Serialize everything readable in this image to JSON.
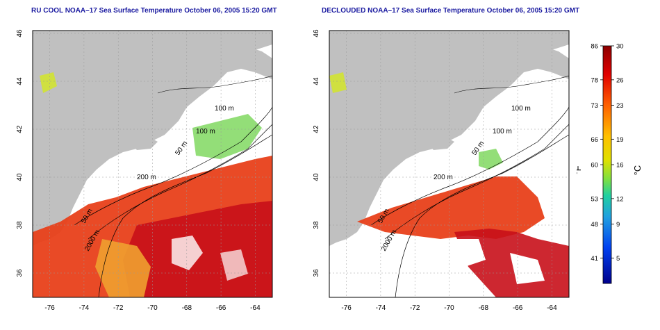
{
  "panels": [
    {
      "title": "RU COOL NOAA–17 Sea Surface Temperature October 06, 2005 15:20 GMT",
      "contour_labels": [
        "100 m",
        "100 m",
        "50 m",
        "200 m",
        "50 m",
        "2000 m"
      ]
    },
    {
      "title": "DECLOUDED NOAA–17 Sea Surface Temperature October 06, 2005 15:20 GMT",
      "contour_labels": [
        "100 m",
        "100 m",
        "50 m",
        "200 m",
        "50 m",
        "2000 m"
      ]
    }
  ],
  "axes": {
    "lon_ticks": [
      "-76",
      "-74",
      "-72",
      "-70",
      "-68",
      "-66",
      "-64"
    ],
    "lat_ticks": [
      "46",
      "44",
      "42",
      "40",
      "38",
      "36"
    ],
    "lon_range": [
      -77,
      -63
    ],
    "lat_range": [
      35,
      46
    ],
    "grid": "dotted"
  },
  "colorbar": {
    "fahrenheit_ticks": [
      "86",
      "78",
      "73",
      "66",
      "60",
      "53",
      "48",
      "41"
    ],
    "celsius_ticks": [
      "30",
      "26",
      "23",
      "19",
      "16",
      "12",
      "9",
      "5"
    ],
    "celsius_values": [
      30,
      26,
      23,
      19,
      16,
      12,
      9,
      5
    ],
    "fahrenheit_values": [
      86,
      78,
      73,
      66,
      60,
      53,
      48,
      41
    ],
    "range_celsius": [
      2,
      30
    ],
    "fahrenheit_unit": "°F",
    "celsius_unit": "°C"
  },
  "colors": {
    "land": "#c0c0c0",
    "ocean": "#ffffff",
    "title": "#1a1aa0",
    "warm": "#e8401a",
    "hot": "#c8101a",
    "mild": "#f0c020",
    "cool": "#40d0a0"
  }
}
